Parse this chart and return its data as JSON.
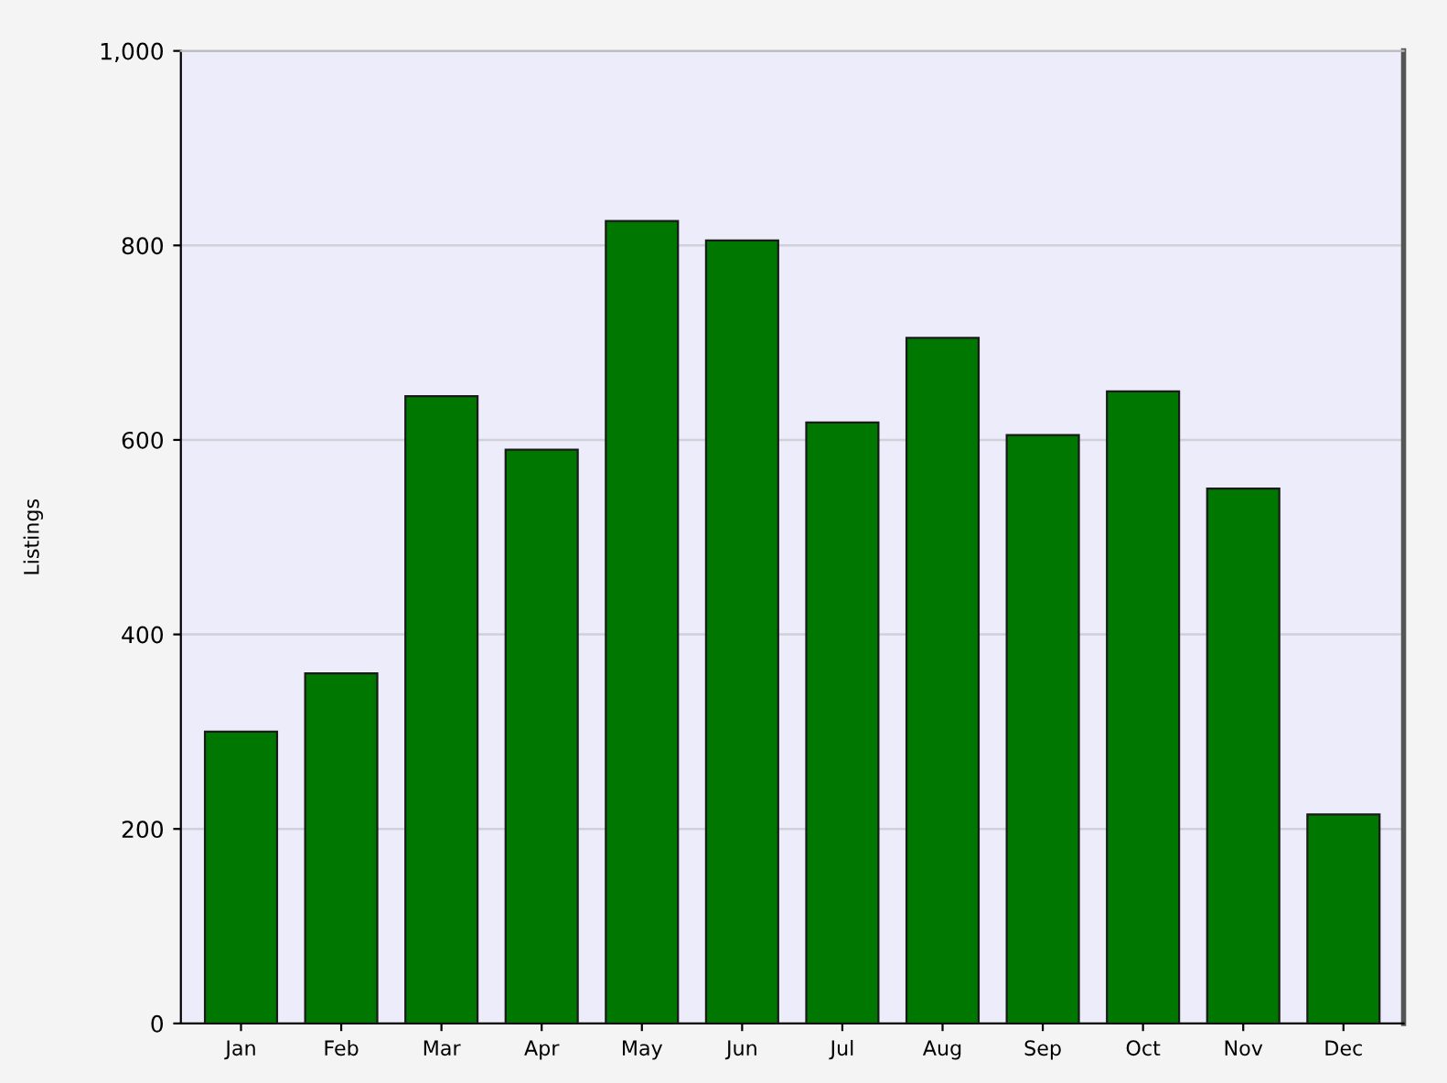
{
  "chart_data": {
    "type": "bar",
    "ylabel": "Listings",
    "categories": [
      "Jan",
      "Feb",
      "Mar",
      "Apr",
      "May",
      "Jun",
      "Jul",
      "Aug",
      "Sep",
      "Oct",
      "Nov",
      "Dec"
    ],
    "values": [
      300,
      360,
      645,
      590,
      825,
      805,
      618,
      705,
      605,
      650,
      550,
      215
    ],
    "color": "#007700",
    "ylim": [
      0,
      1000
    ],
    "yticks": [
      0,
      200,
      400,
      600,
      800,
      {
        "value": 1000,
        "label": "1,000"
      }
    ],
    "grid": "y"
  }
}
